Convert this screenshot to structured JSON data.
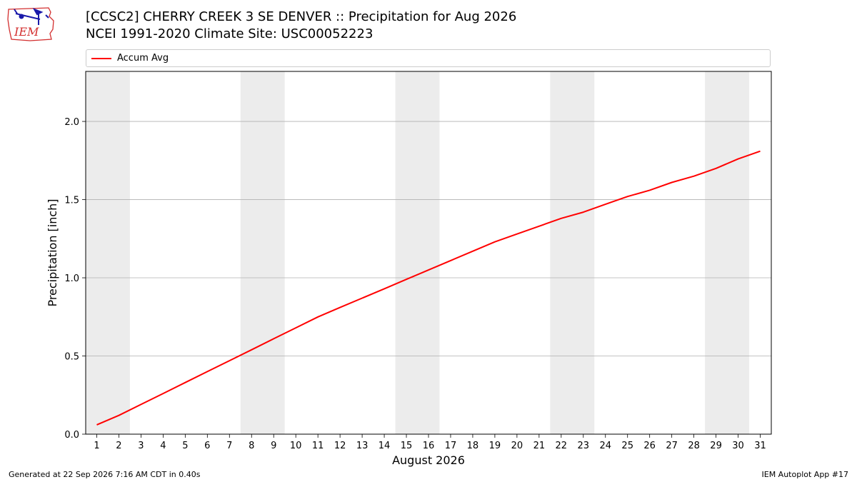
{
  "header": {
    "title_line1": "[CCSC2] CHERRY CREEK 3 SE DENVER :: Precipitation for Aug 2026",
    "title_line2": "NCEI 1991-2020 Climate Site: USC00052223",
    "logo_text": "IEM"
  },
  "footer": {
    "generated": "Generated at 22 Sep 2026 7:16 AM CDT in 0.40s",
    "app": "IEM Autoplot App #17"
  },
  "colors": {
    "series": "#ff0000",
    "weekend_band": "#ececec",
    "grid": "#b0b0b0",
    "logo_red": "#d32f2f",
    "logo_blue": "#1a1aaa"
  },
  "chart_data": {
    "type": "line",
    "xlabel": "August 2026",
    "ylabel": "Precipitation [inch]",
    "xlim": [
      0.5,
      31.5
    ],
    "ylim": [
      0,
      2.32
    ],
    "grid": "horizontal",
    "legend_placement": "top-left, above plot",
    "x_ticks": [
      1,
      2,
      3,
      4,
      5,
      6,
      7,
      8,
      9,
      10,
      11,
      12,
      13,
      14,
      15,
      16,
      17,
      18,
      19,
      20,
      21,
      22,
      23,
      24,
      25,
      26,
      27,
      28,
      29,
      30,
      31
    ],
    "y_ticks": [
      "0.0",
      "0.5",
      "1.0",
      "1.5",
      "2.0"
    ],
    "y_tick_values": [
      0,
      0.5,
      1.0,
      1.5,
      2.0
    ],
    "weekend_bands": [
      [
        0.5,
        2.5
      ],
      [
        7.5,
        9.5
      ],
      [
        14.5,
        16.5
      ],
      [
        21.5,
        23.5
      ],
      [
        28.5,
        30.5
      ]
    ],
    "series": [
      {
        "name": "Accum Avg",
        "x": [
          1,
          2,
          3,
          4,
          5,
          6,
          7,
          8,
          9,
          10,
          11,
          12,
          13,
          14,
          15,
          16,
          17,
          18,
          19,
          20,
          21,
          22,
          23,
          24,
          25,
          26,
          27,
          28,
          29,
          30,
          31
        ],
        "values": [
          0.06,
          0.12,
          0.19,
          0.26,
          0.33,
          0.4,
          0.47,
          0.54,
          0.61,
          0.68,
          0.75,
          0.81,
          0.87,
          0.93,
          0.99,
          1.05,
          1.11,
          1.17,
          1.23,
          1.28,
          1.33,
          1.38,
          1.42,
          1.47,
          1.52,
          1.56,
          1.61,
          1.65,
          1.7,
          1.76,
          1.81
        ]
      }
    ]
  }
}
